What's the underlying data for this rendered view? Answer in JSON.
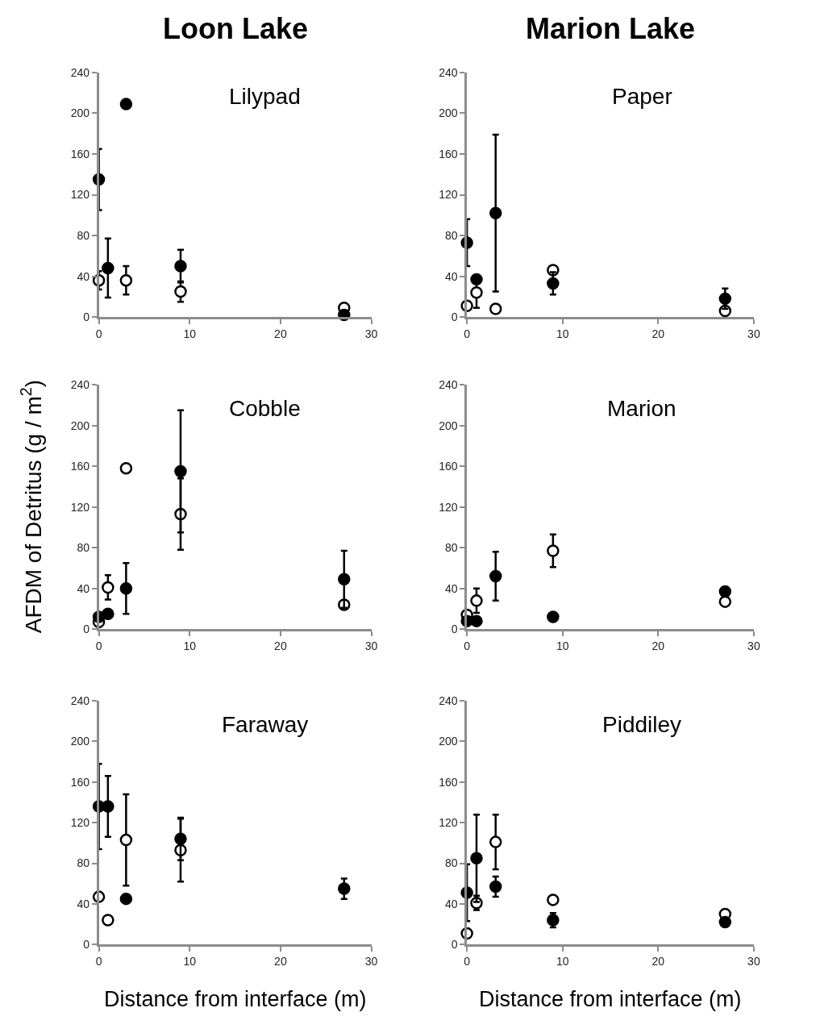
{
  "chart_data": [
    {
      "type": "scatter",
      "title": "Lilypad",
      "annotations": [
        "Loon Lake"
      ],
      "marker": "circle",
      "x": [
        0,
        1,
        3,
        9,
        27
      ],
      "xlim": [
        0,
        30
      ],
      "xticks": [
        0,
        10,
        20,
        30
      ],
      "ylim": [
        0,
        240
      ],
      "yticks": [
        0,
        40,
        80,
        120,
        160,
        200,
        240
      ],
      "series": [
        {
          "color": "#000000",
          "values": [
            135,
            48,
            209,
            50,
            2
          ],
          "errors": [
            30,
            29,
            null,
            16,
            null
          ]
        },
        {
          "color": "#ffffff",
          "values": [
            36,
            null,
            36,
            25,
            9
          ],
          "errors": [
            9,
            null,
            14,
            10,
            null
          ]
        }
      ]
    },
    {
      "type": "scatter",
      "title": "Paper",
      "annotations": [
        "Marion Lake"
      ],
      "marker": "circle",
      "x": [
        0,
        1,
        3,
        9,
        27
      ],
      "xlim": [
        0,
        30
      ],
      "xticks": [
        0,
        10,
        20,
        30
      ],
      "ylim": [
        0,
        240
      ],
      "yticks": [
        0,
        40,
        80,
        120,
        160,
        200,
        240
      ],
      "series": [
        {
          "color": "#000000",
          "values": [
            73,
            37,
            102,
            33,
            18
          ],
          "errors": [
            23,
            null,
            77,
            11,
            10
          ]
        },
        {
          "color": "#ffffff",
          "values": [
            11,
            24,
            8,
            46,
            6
          ],
          "errors": [
            null,
            15,
            null,
            null,
            null
          ]
        }
      ]
    },
    {
      "type": "scatter",
      "title": "Cobble",
      "ylabel": "AFDM of Detritus (g / m$^{2}$)",
      "marker": "circle",
      "x": [
        0,
        1,
        3,
        9,
        27
      ],
      "xlim": [
        0,
        30
      ],
      "xticks": [
        0,
        10,
        20,
        30
      ],
      "ylim": [
        0,
        240
      ],
      "yticks": [
        0,
        40,
        80,
        120,
        160,
        200,
        240
      ],
      "series": [
        {
          "color": "#000000",
          "values": [
            12,
            15,
            40,
            155,
            49
          ],
          "errors": [
            null,
            null,
            25,
            60,
            28
          ]
        },
        {
          "color": "#ffffff",
          "values": [
            7,
            41,
            158,
            113,
            24
          ],
          "errors": [
            null,
            12,
            null,
            35,
            null
          ]
        }
      ]
    },
    {
      "type": "scatter",
      "title": "Marion",
      "marker": "circle",
      "x": [
        0,
        1,
        3,
        9,
        27
      ],
      "xlim": [
        0,
        30
      ],
      "xticks": [
        0,
        10,
        20,
        30
      ],
      "ylim": [
        0,
        240
      ],
      "yticks": [
        0,
        40,
        80,
        120,
        160,
        200,
        240
      ],
      "series": [
        {
          "color": "#000000",
          "values": [
            8,
            8,
            52,
            12,
            37
          ],
          "errors": [
            null,
            null,
            24,
            null,
            null
          ]
        },
        {
          "color": "#ffffff",
          "values": [
            14,
            28,
            null,
            77,
            27
          ],
          "errors": [
            null,
            12,
            null,
            16,
            null
          ]
        }
      ]
    },
    {
      "type": "scatter",
      "title": "Faraway",
      "xlabel": "Distance from interface (m)",
      "marker": "circle",
      "x": [
        0,
        1,
        3,
        9,
        27
      ],
      "xlim": [
        0,
        30
      ],
      "xticks": [
        0,
        10,
        20,
        30
      ],
      "ylim": [
        0,
        240
      ],
      "yticks": [
        0,
        40,
        80,
        120,
        160,
        200,
        240
      ],
      "series": [
        {
          "color": "#000000",
          "values": [
            136,
            136,
            45,
            104,
            55
          ],
          "errors": [
            42,
            30,
            null,
            21,
            10
          ]
        },
        {
          "color": "#ffffff",
          "values": [
            47,
            24,
            103,
            93,
            null
          ],
          "errors": [
            null,
            null,
            45,
            31,
            null
          ]
        }
      ]
    },
    {
      "type": "scatter",
      "title": "Piddiley",
      "xlabel": "Distance from interface (m)",
      "marker": "circle",
      "x": [
        0,
        1,
        3,
        9,
        27
      ],
      "xlim": [
        0,
        30
      ],
      "xticks": [
        0,
        10,
        20,
        30
      ],
      "ylim": [
        0,
        240
      ],
      "yticks": [
        0,
        40,
        80,
        120,
        160,
        200,
        240
      ],
      "series": [
        {
          "color": "#000000",
          "values": [
            51,
            85,
            57,
            24,
            22
          ],
          "errors": [
            28,
            43,
            10,
            7,
            null
          ]
        },
        {
          "color": "#ffffff",
          "values": [
            11,
            41,
            101,
            44,
            30
          ],
          "errors": [
            null,
            7,
            27,
            4,
            null
          ]
        }
      ]
    }
  ]
}
